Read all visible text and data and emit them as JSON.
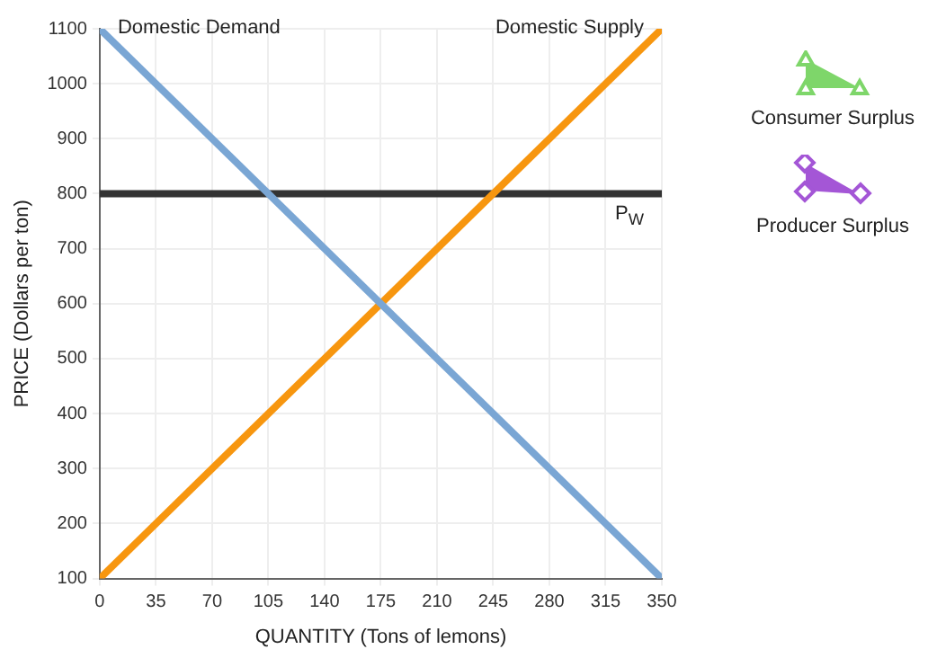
{
  "chart_data": {
    "type": "line",
    "xlabel": "QUANTITY (Tons of lemons)",
    "ylabel": "PRICE (Dollars per ton)",
    "x": [
      0,
      350
    ],
    "series": [
      {
        "name": "Domestic Demand",
        "color": "#7aa6d4",
        "values": [
          1100,
          100
        ]
      },
      {
        "name": "Domestic Supply",
        "color": "#f7960f",
        "values": [
          100,
          1100
        ]
      }
    ],
    "xlim": [
      0,
      350
    ],
    "xticks": [
      0,
      35,
      70,
      105,
      140,
      175,
      210,
      245,
      280,
      315,
      350
    ],
    "ylim": [
      100,
      1100
    ],
    "yticks": [
      100,
      200,
      300,
      400,
      500,
      600,
      700,
      800,
      900,
      1000,
      1100
    ],
    "ref_lines": [
      {
        "axis": "y",
        "value": 800,
        "label": "P$_{W}$",
        "color": "#333333"
      }
    ],
    "annotations": [
      "Consumer Surplus",
      "Producer Surplus"
    ],
    "grid": true,
    "legend": false,
    "marker": "none",
    "line_style": "solid"
  }
}
